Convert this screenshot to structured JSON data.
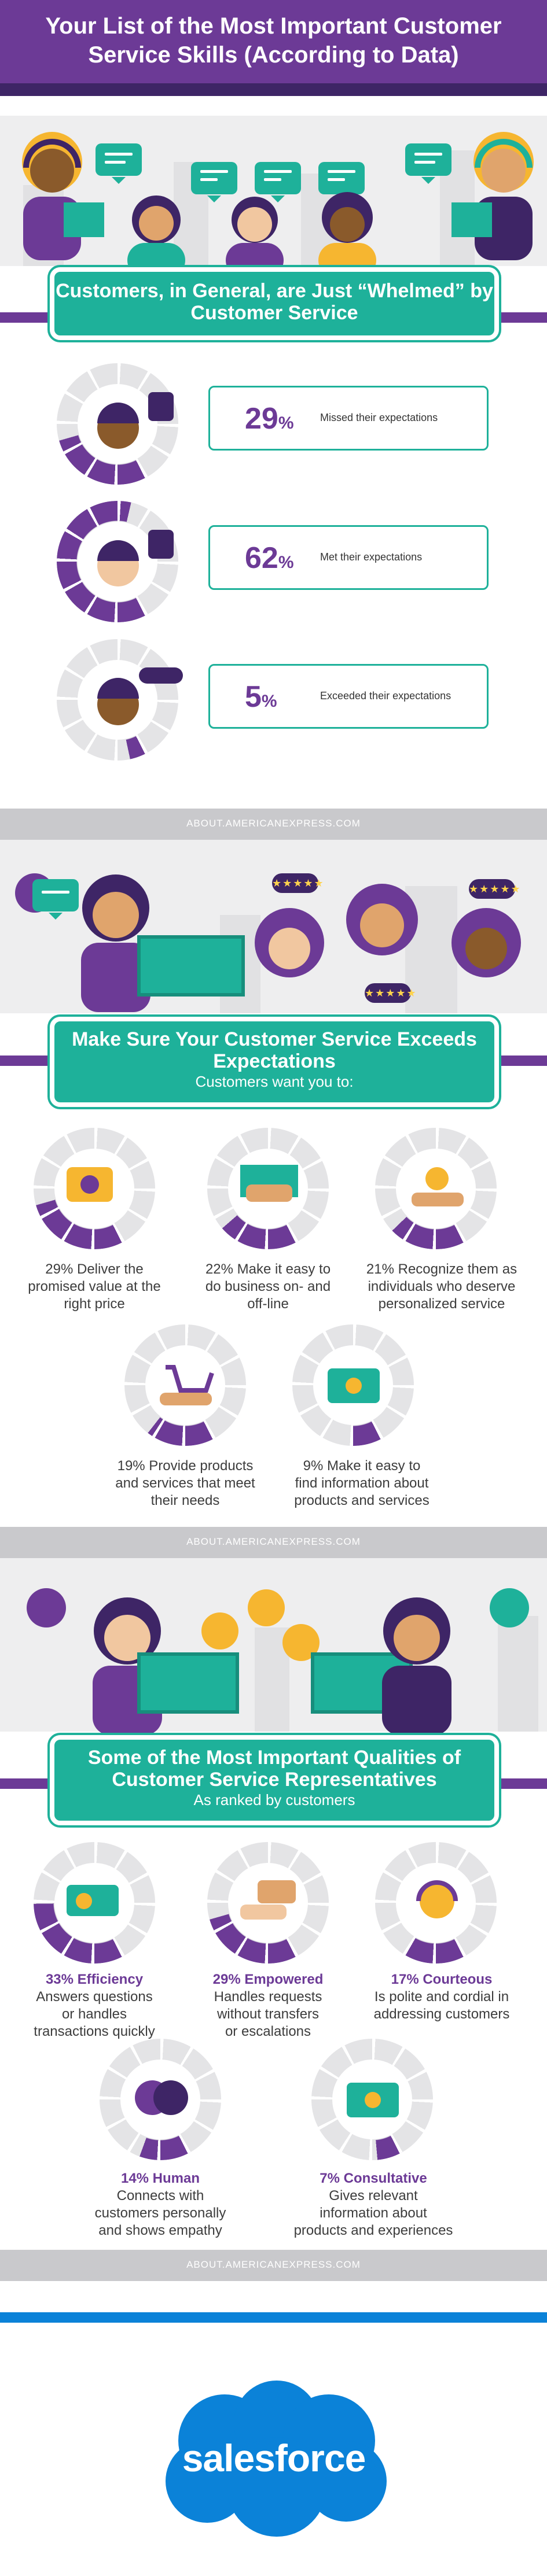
{
  "header": {
    "title": "Your List of the Most Important Customer Service Skills (According to Data)"
  },
  "section1": {
    "banner_title": "Customers, in General, are Just “Whelmed” by Customer Service",
    "stats": [
      {
        "percent": "29",
        "unit": "%",
        "label": "Missed their expectations",
        "value": 29
      },
      {
        "percent": "62",
        "unit": "%",
        "label": "Met their expectations",
        "value": 62
      },
      {
        "percent": "5",
        "unit": "%",
        "label": "Exceeded their expectations",
        "value": 5
      }
    ],
    "source": "ABOUT.AMERICANEXPRESS.COM"
  },
  "section2": {
    "banner_title": "Make Sure Your Customer Service Exceeds Expectations",
    "banner_subtitle": "Customers want you to:",
    "items": [
      {
        "value": 29,
        "line1": "29% Deliver the",
        "line2": "promised value at the",
        "line3": "right price"
      },
      {
        "value": 22,
        "line1": "22% Make it easy to",
        "line2": "do business on- and",
        "line3": "off-line"
      },
      {
        "value": 21,
        "line1": "21% Recognize them as",
        "line2": "individuals who deserve",
        "line3": "personalized service"
      },
      {
        "value": 19,
        "line1": "19% Provide products",
        "line2": "and services that meet",
        "line3": "their needs"
      },
      {
        "value": 9,
        "line1": "9% Make it easy to",
        "line2": "find information about",
        "line3": "products and services"
      }
    ],
    "source": "ABOUT.AMERICANEXPRESS.COM"
  },
  "section3": {
    "banner_title": "Some of the Most Important Qualities of Customer Service Representatives",
    "banner_subtitle": "As ranked by customers",
    "items": [
      {
        "value": 33,
        "title": "33% Efficiency",
        "line1": "Answers questions",
        "line2": "or handles",
        "line3": "transactions quickly"
      },
      {
        "value": 29,
        "title": "29% Empowered",
        "line1": "Handles requests",
        "line2": "without transfers",
        "line3": "or escalations"
      },
      {
        "value": 17,
        "title": "17% Courteous",
        "line1": "Is polite and cordial in",
        "line2": "addressing customers",
        "line3": ""
      },
      {
        "value": 14,
        "title": "14% Human",
        "line1": "Connects with",
        "line2": "customers personally",
        "line3": "and shows empathy"
      },
      {
        "value": 7,
        "title": "7% Consultative",
        "line1": "Gives relevant",
        "line2": "information about",
        "line3": "products and experiences"
      }
    ],
    "source": "ABOUT.AMERICANEXPRESS.COM"
  },
  "brand": {
    "logo_text": "salesforce"
  },
  "colors": {
    "purple": "#6c3a96",
    "teal": "#1eb19a",
    "grey": "#c9c9cc",
    "salesforce_blue": "#0b82d8"
  }
}
